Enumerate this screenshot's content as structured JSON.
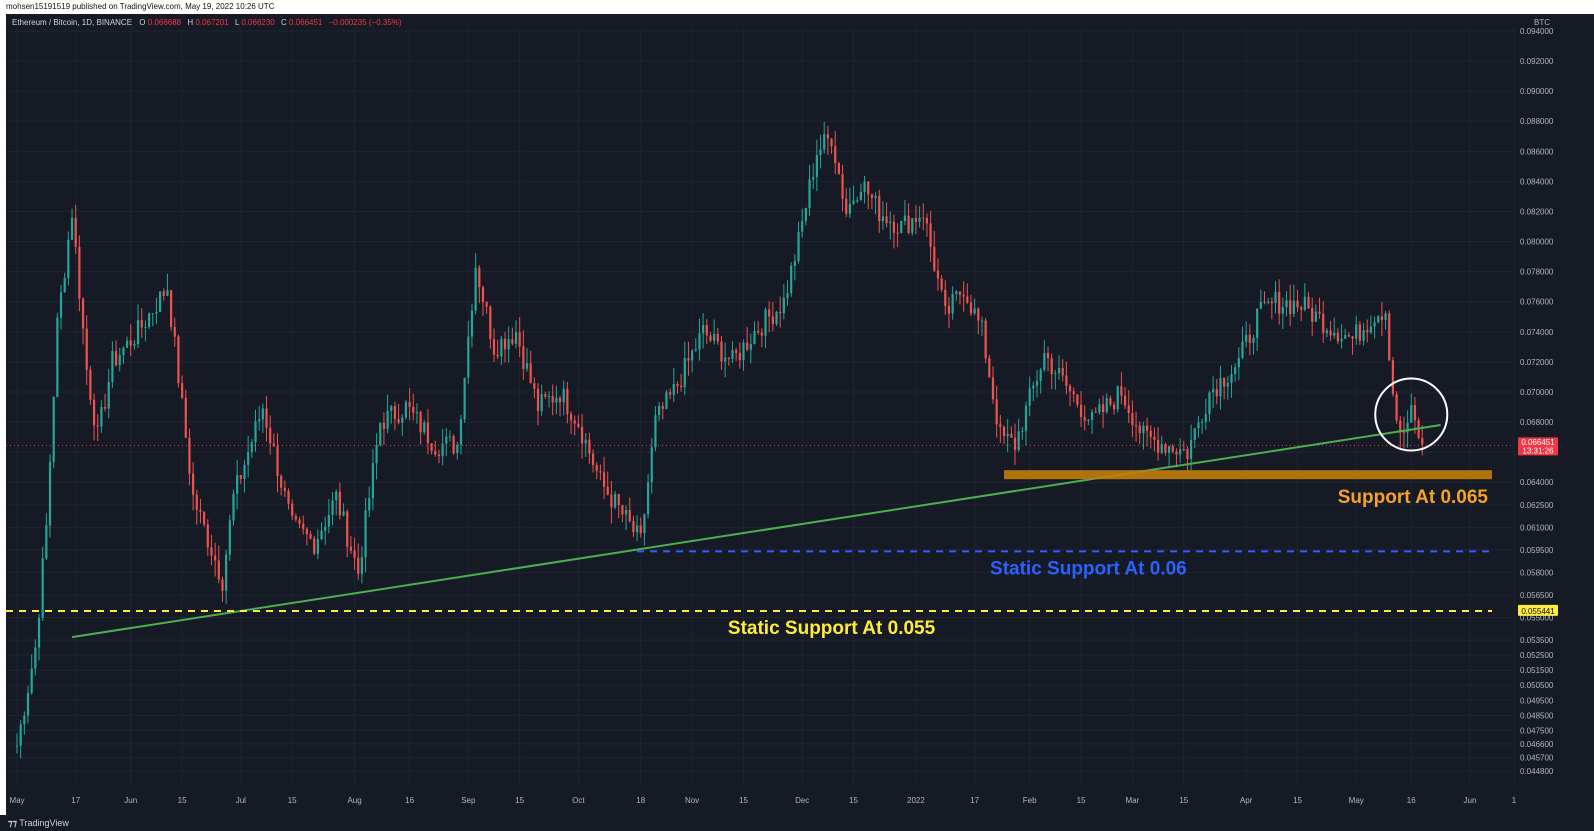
{
  "published_by": "mohsen15191519 published on TradingView.com, May 19, 2022 10:26 UTC",
  "footer_logo": "TradingView",
  "colors": {
    "background": "#161a25",
    "up": "#26a69a",
    "down": "#ef5350",
    "trendline": "#4caf50",
    "support_zone": "#c27c0e",
    "support_zone_text": "#f5a12a",
    "static_060": "#2962ff",
    "static_055": "#ffeb3b",
    "last_price": "#f23645",
    "circle": "#ffffff"
  },
  "chart_data": {
    "type": "candlestick",
    "symbol_line": {
      "name": "Ethereum / Bitcoin, 1D, BINANCE",
      "open_label": "O",
      "open": "0.066688",
      "high_label": "H",
      "high": "0.067201",
      "low_label": "L",
      "low": "0.066230",
      "close_label": "C",
      "close": "0.066451",
      "change": "−0.000235 (−0.35%)"
    },
    "currency": "BTC",
    "ylim": [
      0.0438,
      0.0942
    ],
    "y_ticks": [
      "0.094000",
      "0.092000",
      "0.090000",
      "0.088000",
      "0.086000",
      "0.084000",
      "0.082000",
      "0.080000",
      "0.078000",
      "0.076000",
      "0.074000",
      "0.072000",
      "0.070000",
      "0.068000",
      "0.066000",
      "0.064000",
      "0.062500",
      "0.061000",
      "0.059500",
      "0.058000",
      "0.056500",
      "0.055000",
      "0.053500",
      "0.052500",
      "0.051500",
      "0.050500",
      "0.049500",
      "0.048500",
      "0.047500",
      "0.046600",
      "0.045700",
      "0.044800"
    ],
    "x_ticks": [
      "May",
      "17",
      "Jun",
      "15",
      "Jul",
      "15",
      "Aug",
      "16",
      "Sep",
      "15",
      "Oct",
      "18",
      "Nov",
      "15",
      "Dec",
      "15",
      "2022",
      "17",
      "Feb",
      "15",
      "Mar",
      "15",
      "Apr",
      "15",
      "May",
      "16",
      "Jun",
      "1"
    ],
    "last_price": "0.066451",
    "last_price_timer": "13:31:26",
    "marked_price": "0.055441",
    "anchors": [
      {
        "date": "2021-05-01",
        "close": 0.0465
      },
      {
        "date": "2021-05-06",
        "close": 0.053
      },
      {
        "date": "2021-05-09",
        "close": 0.061
      },
      {
        "date": "2021-05-12",
        "close": 0.0745
      },
      {
        "date": "2021-05-16",
        "close": 0.082
      },
      {
        "date": "2021-05-20",
        "close": 0.0715
      },
      {
        "date": "2021-05-23",
        "close": 0.067
      },
      {
        "date": "2021-05-27",
        "close": 0.072
      },
      {
        "date": "2021-06-03",
        "close": 0.074
      },
      {
        "date": "2021-06-11",
        "close": 0.077
      },
      {
        "date": "2021-06-18",
        "close": 0.063
      },
      {
        "date": "2021-06-26",
        "close": 0.0575
      },
      {
        "date": "2021-06-29",
        "close": 0.063
      },
      {
        "date": "2021-07-07",
        "close": 0.069
      },
      {
        "date": "2021-07-15",
        "close": 0.061
      },
      {
        "date": "2021-07-21",
        "close": 0.06
      },
      {
        "date": "2021-07-27",
        "close": 0.063
      },
      {
        "date": "2021-08-02",
        "close": 0.058
      },
      {
        "date": "2021-08-08",
        "close": 0.068
      },
      {
        "date": "2021-08-15",
        "close": 0.069
      },
      {
        "date": "2021-08-23",
        "close": 0.0665
      },
      {
        "date": "2021-08-29",
        "close": 0.0665
      },
      {
        "date": "2021-09-03",
        "close": 0.0785
      },
      {
        "date": "2021-09-08",
        "close": 0.073
      },
      {
        "date": "2021-09-14",
        "close": 0.074
      },
      {
        "date": "2021-09-20",
        "close": 0.069
      },
      {
        "date": "2021-09-26",
        "close": 0.07
      },
      {
        "date": "2021-10-01",
        "close": 0.068
      },
      {
        "date": "2021-10-07",
        "close": 0.064
      },
      {
        "date": "2021-10-14",
        "close": 0.0615
      },
      {
        "date": "2021-10-18",
        "close": 0.06
      },
      {
        "date": "2021-10-22",
        "close": 0.068
      },
      {
        "date": "2021-10-27",
        "close": 0.07
      },
      {
        "date": "2021-11-04",
        "close": 0.074
      },
      {
        "date": "2021-11-12",
        "close": 0.072
      },
      {
        "date": "2021-11-18",
        "close": 0.074
      },
      {
        "date": "2021-11-26",
        "close": 0.076
      },
      {
        "date": "2021-11-30",
        "close": 0.08
      },
      {
        "date": "2021-12-05",
        "close": 0.086
      },
      {
        "date": "2021-12-09",
        "close": 0.087
      },
      {
        "date": "2021-12-13",
        "close": 0.082
      },
      {
        "date": "2021-12-17",
        "close": 0.084
      },
      {
        "date": "2021-12-22",
        "close": 0.082
      },
      {
        "date": "2021-12-28",
        "close": 0.081
      },
      {
        "date": "2022-01-03",
        "close": 0.082
      },
      {
        "date": "2022-01-09",
        "close": 0.075
      },
      {
        "date": "2022-01-14",
        "close": 0.077
      },
      {
        "date": "2022-01-19",
        "close": 0.074
      },
      {
        "date": "2022-01-24",
        "close": 0.067
      },
      {
        "date": "2022-01-28",
        "close": 0.0665
      },
      {
        "date": "2022-02-05",
        "close": 0.0725
      },
      {
        "date": "2022-02-12",
        "close": 0.07
      },
      {
        "date": "2022-02-18",
        "close": 0.068
      },
      {
        "date": "2022-02-26",
        "close": 0.07
      },
      {
        "date": "2022-03-04",
        "close": 0.067
      },
      {
        "date": "2022-03-10",
        "close": 0.0665
      },
      {
        "date": "2022-03-16",
        "close": 0.066
      },
      {
        "date": "2022-03-22",
        "close": 0.07
      },
      {
        "date": "2022-03-30",
        "close": 0.072
      },
      {
        "date": "2022-04-04",
        "close": 0.075
      },
      {
        "date": "2022-04-09",
        "close": 0.076
      },
      {
        "date": "2022-04-16",
        "close": 0.0758
      },
      {
        "date": "2022-04-23",
        "close": 0.0745
      },
      {
        "date": "2022-04-30",
        "close": 0.0735
      },
      {
        "date": "2022-05-06",
        "close": 0.0752
      },
      {
        "date": "2022-05-09",
        "close": 0.0755
      },
      {
        "date": "2022-05-11",
        "close": 0.07
      },
      {
        "date": "2022-05-13",
        "close": 0.0668
      },
      {
        "date": "2022-05-16",
        "close": 0.0685
      },
      {
        "date": "2022-05-19",
        "close": 0.0665
      }
    ],
    "annotations": [
      {
        "name": "trendline",
        "kind": "line",
        "from": {
          "date": "2021-05-16",
          "price": 0.0537
        },
        "to": {
          "date": "2022-05-24",
          "price": 0.0678
        }
      },
      {
        "name": "support-065",
        "kind": "zone",
        "from_date": "2022-01-25",
        "to_date": "2022-06-07",
        "price_low": 0.0642,
        "price_high": 0.0648,
        "label": "Support At 0.065"
      },
      {
        "name": "static-060",
        "kind": "dashed-line",
        "from_date": "2021-10-17",
        "to_date": "2022-06-07",
        "price": 0.0594,
        "label": "Static Support At 0.06"
      },
      {
        "name": "static-055",
        "kind": "dashed-line",
        "from_date": "2021-04-28",
        "to_date": "2022-06-07",
        "price": 0.05544,
        "label": "Static Support At 0.055"
      },
      {
        "name": "focus-circle",
        "kind": "circle",
        "date": "2022-05-16",
        "price": 0.0685
      }
    ]
  }
}
